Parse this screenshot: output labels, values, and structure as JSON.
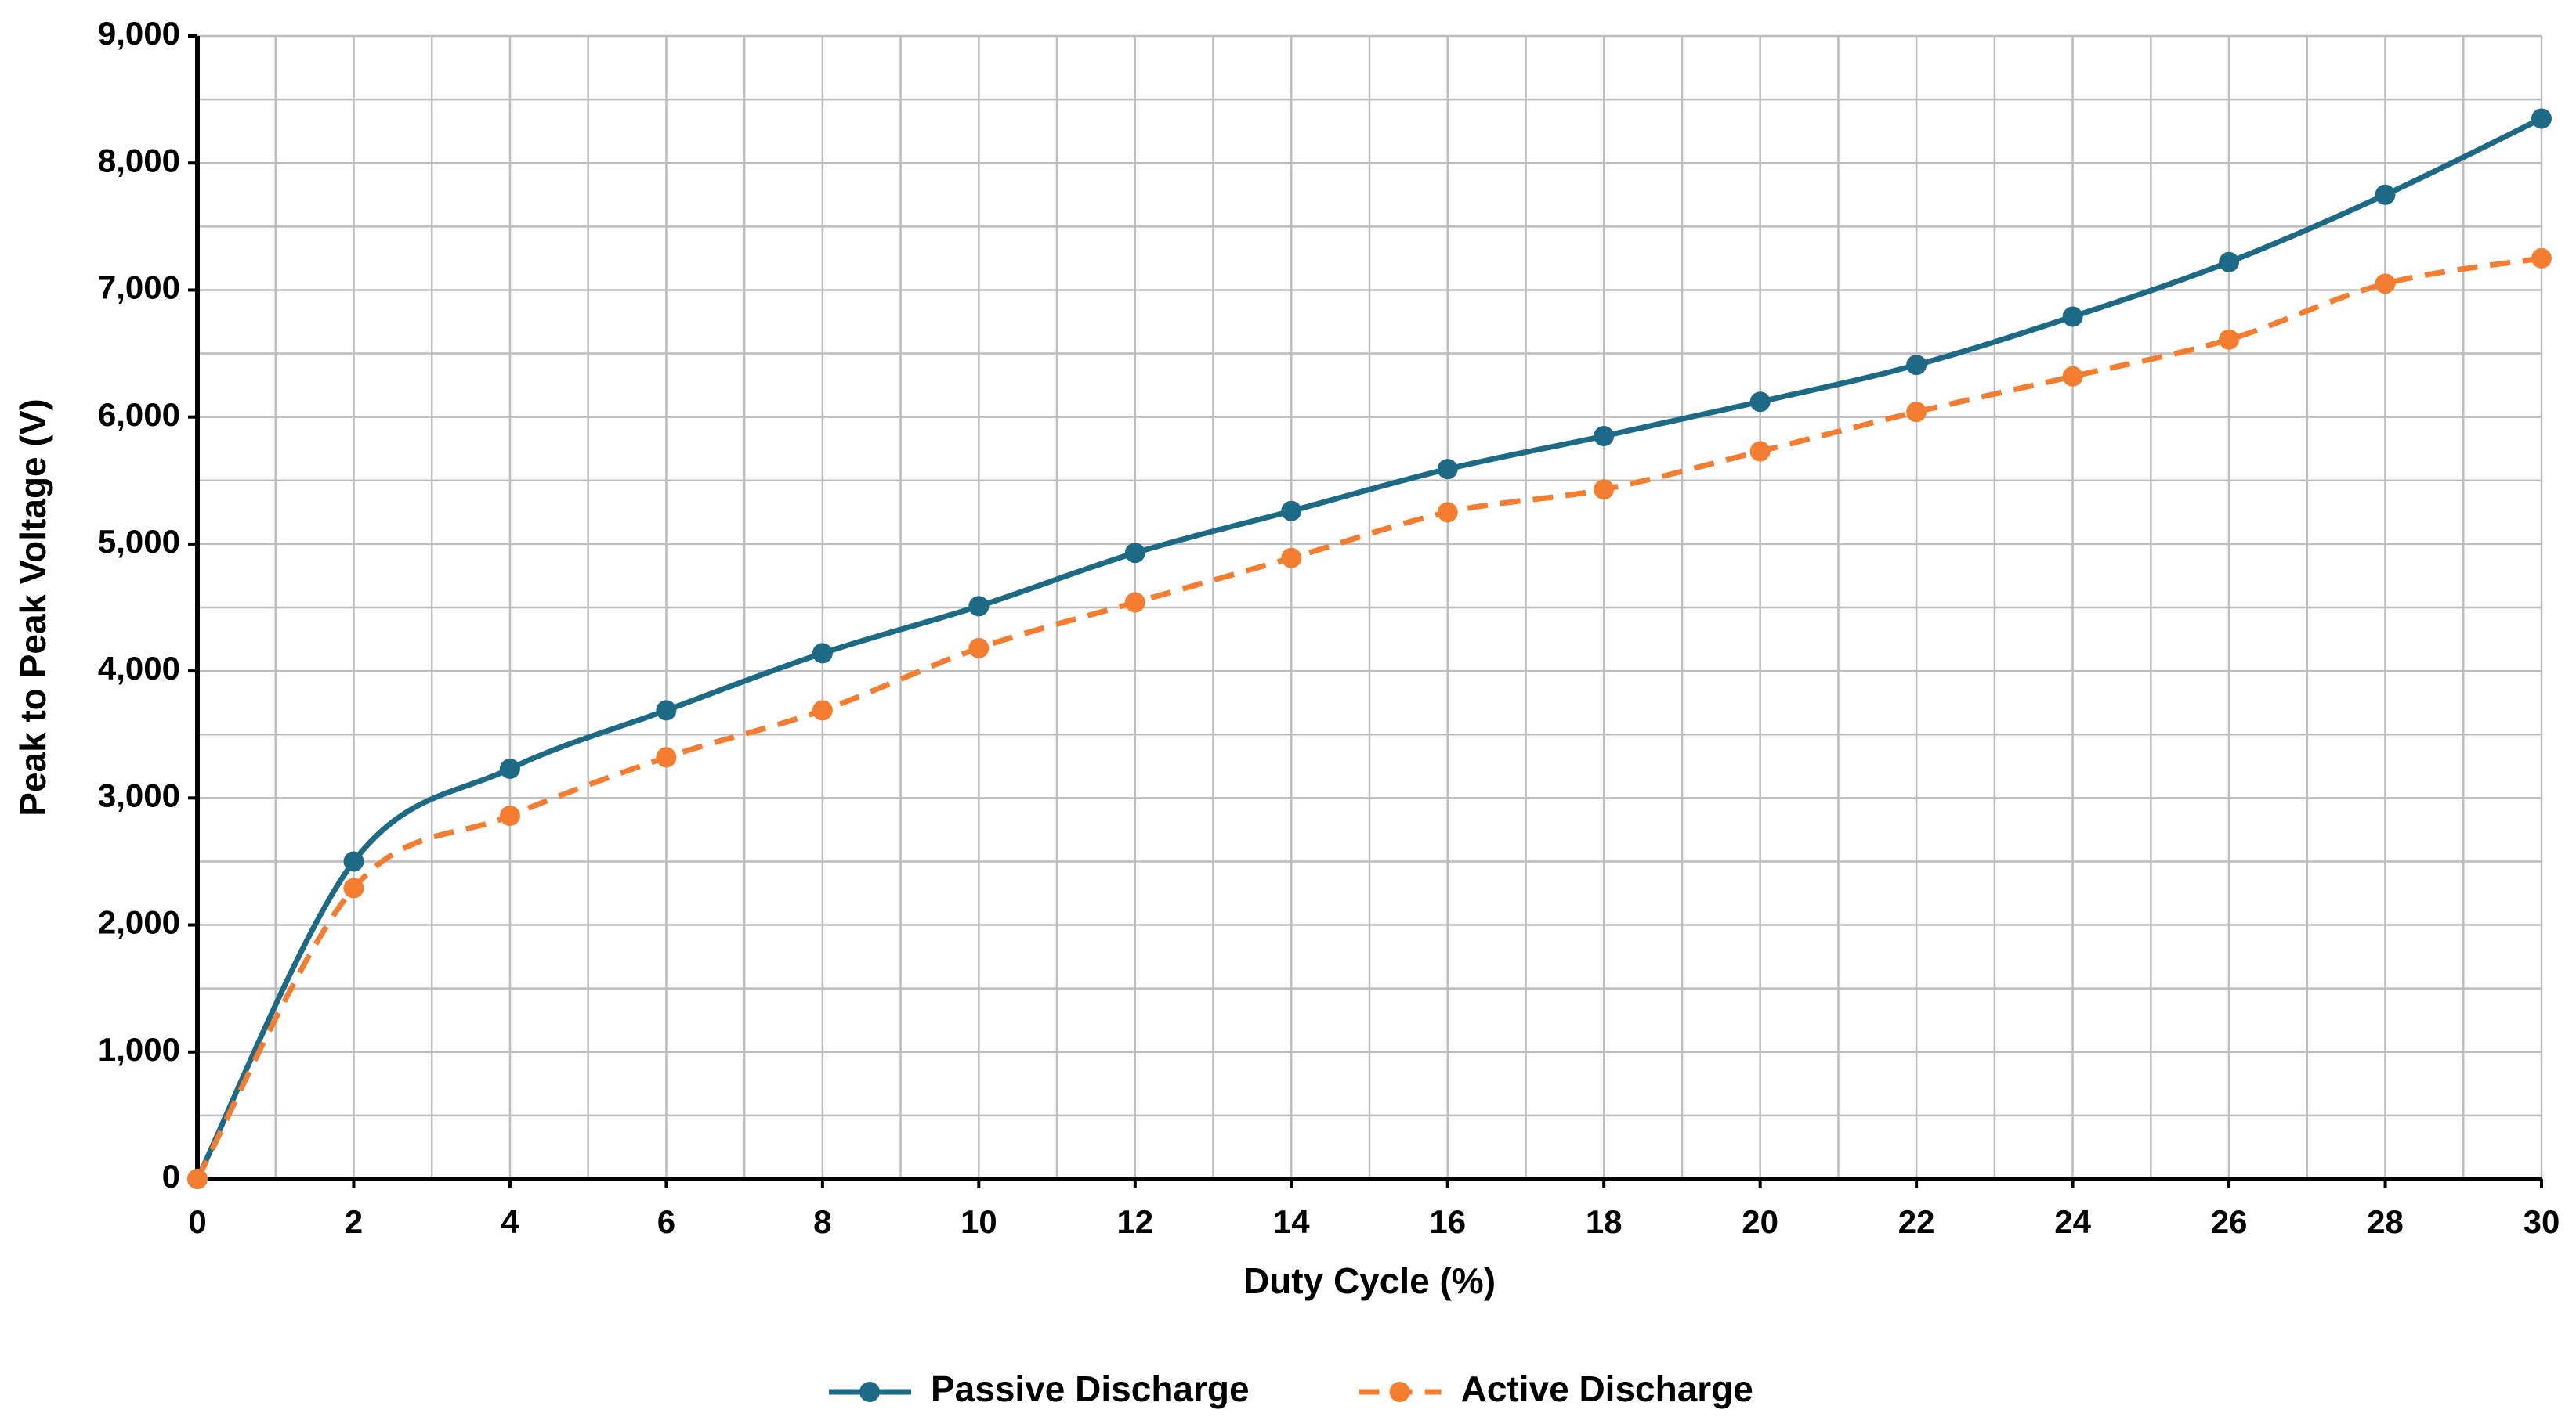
{
  "chart_data": {
    "type": "line",
    "x_label": "Duty Cycle (%)",
    "y_label": "Peak to Peak Voltage (V)",
    "x": [
      0,
      2,
      4,
      6,
      8,
      10,
      12,
      14,
      16,
      18,
      20,
      22,
      24,
      26,
      28,
      30
    ],
    "series": [
      {
        "name": "Passive Discharge",
        "color": "#1d6a87",
        "dash": false,
        "values": [
          0,
          2500,
          3230,
          3690,
          4140,
          4510,
          4930,
          5260,
          5590,
          5850,
          6120,
          6410,
          6790,
          7220,
          7750,
          8350
        ]
      },
      {
        "name": "Active Discharge",
        "color": "#f47d30",
        "dash": true,
        "values": [
          0,
          2290,
          2860,
          3320,
          3690,
          4180,
          4540,
          4890,
          5250,
          5430,
          5730,
          6040,
          6320,
          6610,
          7050,
          7250
        ]
      }
    ],
    "xlim": [
      0,
      30
    ],
    "ylim": [
      0,
      9000
    ],
    "xticks": [
      0,
      2,
      4,
      6,
      8,
      10,
      12,
      14,
      16,
      18,
      20,
      22,
      24,
      26,
      28,
      30
    ],
    "yticks": [
      0,
      {
        "value": 1000,
        "label": "1,000"
      },
      {
        "value": 2000,
        "label": "2,000"
      },
      {
        "value": 3000,
        "label": "3,000"
      },
      {
        "value": 4000,
        "label": "4,000"
      },
      {
        "value": 5000,
        "label": "5,000"
      },
      {
        "value": 6000,
        "label": "6,000"
      },
      {
        "value": 7000,
        "label": "7,000"
      },
      {
        "value": 8000,
        "label": "8,000"
      },
      {
        "value": 9000,
        "label": "9,000"
      }
    ],
    "xgrid": [
      0,
      1,
      2,
      3,
      4,
      5,
      6,
      7,
      8,
      9,
      10,
      11,
      12,
      13,
      14,
      15,
      16,
      17,
      18,
      19,
      20,
      21,
      22,
      23,
      24,
      25,
      26,
      27,
      28,
      29,
      30
    ],
    "ygrid": [
      0,
      500,
      1000,
      1500,
      2000,
      2500,
      3000,
      3500,
      4000,
      4500,
      5000,
      5500,
      6000,
      6500,
      7000,
      7500,
      8000,
      8500,
      9000
    ],
    "grid": true,
    "smooth": true,
    "markers": true,
    "legend": "bottom"
  }
}
